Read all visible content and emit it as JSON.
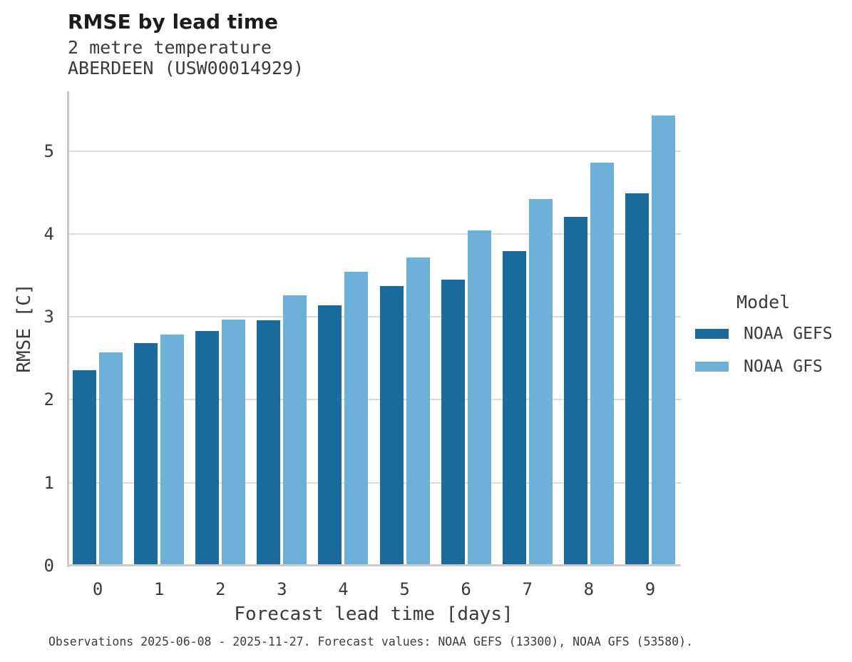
{
  "caption": "Observations 2025-06-08 - 2025-11-27. Forecast values: NOAA GEFS (13300), NOAA GFS (53580).",
  "chart_data": {
    "type": "bar",
    "title": "RMSE by lead time",
    "subtitle_lines": [
      "2 metre temperature",
      "ABERDEEN (USW00014929)"
    ],
    "xlabel": "Forecast lead time [days]",
    "ylabel": "RMSE [C]",
    "categories": [
      "0",
      "1",
      "2",
      "3",
      "4",
      "5",
      "6",
      "7",
      "8",
      "9"
    ],
    "series": [
      {
        "name": "NOAA GEFS",
        "color": "#1a6b9b",
        "values": [
          2.36,
          2.68,
          2.83,
          2.96,
          3.14,
          3.37,
          3.45,
          3.79,
          4.21,
          4.49
        ]
      },
      {
        "name": "NOAA GFS",
        "color": "#6db1d9",
        "values": [
          2.57,
          2.79,
          2.97,
          3.26,
          3.54,
          3.72,
          4.04,
          4.42,
          4.86,
          5.43
        ]
      }
    ],
    "ylim": [
      0,
      5.72
    ],
    "yticks": [
      0,
      1,
      2,
      3,
      4,
      5
    ],
    "grid": true,
    "legend_title": "Model",
    "legend_position": "right"
  },
  "styles": {
    "grid_color": "#dcdcdc",
    "spine_color": "#c9c9c9",
    "title_color": "#1c1c1c",
    "text_color": "#3a3a3a"
  }
}
